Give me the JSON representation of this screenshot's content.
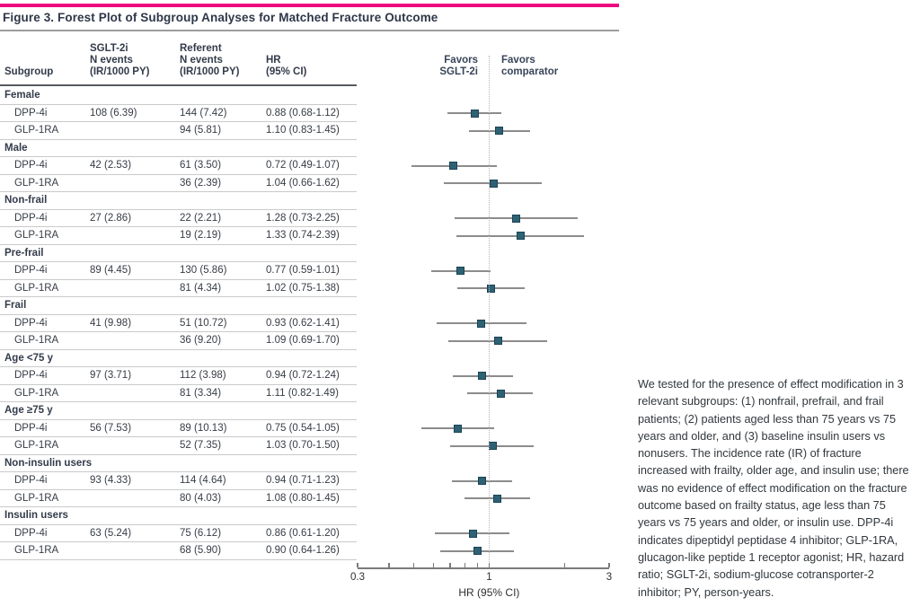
{
  "figure": {
    "title": "Figure 3. Forest Plot of Subgroup Analyses for Matched Fracture Outcome",
    "accent_color": "#ec0a7e",
    "marker_color": "#2e6174",
    "ci_color": "#8c8c8c"
  },
  "table": {
    "columns": {
      "subgroup": "Subgroup",
      "sglt2i": [
        "SGLT-2i",
        "N events",
        "(IR/1000 PY)"
      ],
      "referent": [
        "Referent",
        "N events",
        "(IR/1000 PY)"
      ],
      "hr": [
        "HR",
        "(95% CI)"
      ]
    }
  },
  "plot": {
    "favors_left": [
      "Favors",
      "SGLT-2i"
    ],
    "favors_right": [
      "Favors",
      "comparator"
    ]
  },
  "caption": "We tested for the presence of effect modification in 3 relevant subgroups: (1) nonfrail, prefrail, and frail patients; (2) patients aged less than 75 years vs 75 years and older, and (3) baseline insulin users vs nonusers. The incidence rate (IR) of fracture increased with frailty, older age, and insulin use; there was no evidence of effect modification on the fracture outcome based on frailty status, age less than 75 years vs 75 years and older, or insulin use. DPP-4i indicates dipeptidyl peptidase 4 inhibitor; GLP-1RA, glucagon-like peptide 1 receptor agonist; HR, hazard ratio; SGLT-2i, sodium-glucose cotransporter-2 inhibitor; PY, person-years.",
  "chart_data": {
    "type": "forest",
    "title": "Figure 3. Forest Plot of Subgroup Analyses for Matched Fracture Outcome",
    "x_axis": {
      "label": "HR (95% CI)",
      "scale": "log",
      "range": [
        0.3,
        3
      ],
      "labeled_ticks": [
        0.3,
        1,
        3
      ],
      "minor_ticks": [
        0.4,
        0.5,
        0.6,
        0.7,
        0.8,
        0.9,
        2
      ],
      "reference_line": 1
    },
    "groups": [
      {
        "label": "Female",
        "rows": [
          {
            "drug": "DPP-4i",
            "sglt2i_events": "108 (6.39)",
            "referent_events": "144 (7.42)",
            "hr_text": "0.88 (0.68-1.12)",
            "hr": 0.88,
            "ci": [
              0.68,
              1.12
            ]
          },
          {
            "drug": "GLP-1RA",
            "sglt2i_events": "",
            "referent_events": "94 (5.81)",
            "hr_text": "1.10 (0.83-1.45)",
            "hr": 1.1,
            "ci": [
              0.83,
              1.45
            ]
          }
        ]
      },
      {
        "label": "Male",
        "rows": [
          {
            "drug": "DPP-4i",
            "sglt2i_events": "42 (2.53)",
            "referent_events": "61 (3.50)",
            "hr_text": "0.72 (0.49-1.07)",
            "hr": 0.72,
            "ci": [
              0.49,
              1.07
            ]
          },
          {
            "drug": "GLP-1RA",
            "sglt2i_events": "",
            "referent_events": "36 (2.39)",
            "hr_text": "1.04 (0.66-1.62)",
            "hr": 1.04,
            "ci": [
              0.66,
              1.62
            ]
          }
        ]
      },
      {
        "label": "Non-frail",
        "rows": [
          {
            "drug": "DPP-4i",
            "sglt2i_events": "27 (2.86)",
            "referent_events": "22 (2.21)",
            "hr_text": "1.28 (0.73-2.25)",
            "hr": 1.28,
            "ci": [
              0.73,
              2.25
            ]
          },
          {
            "drug": "GLP-1RA",
            "sglt2i_events": "",
            "referent_events": "19 (2.19)",
            "hr_text": "1.33 (0.74-2.39)",
            "hr": 1.33,
            "ci": [
              0.74,
              2.39
            ]
          }
        ]
      },
      {
        "label": "Pre-frail",
        "rows": [
          {
            "drug": "DPP-4i",
            "sglt2i_events": "89 (4.45)",
            "referent_events": "130 (5.86)",
            "hr_text": "0.77 (0.59-1.01)",
            "hr": 0.77,
            "ci": [
              0.59,
              1.01
            ]
          },
          {
            "drug": "GLP-1RA",
            "sglt2i_events": "",
            "referent_events": "81 (4.34)",
            "hr_text": "1.02 (0.75-1.38)",
            "hr": 1.02,
            "ci": [
              0.75,
              1.38
            ]
          }
        ]
      },
      {
        "label": "Frail",
        "rows": [
          {
            "drug": "DPP-4i",
            "sglt2i_events": "41 (9.98)",
            "referent_events": "51 (10.72)",
            "hr_text": "0.93 (0.62-1.41)",
            "hr": 0.93,
            "ci": [
              0.62,
              1.41
            ]
          },
          {
            "drug": "GLP-1RA",
            "sglt2i_events": "",
            "referent_events": "36 (9.20)",
            "hr_text": "1.09 (0.69-1.70)",
            "hr": 1.09,
            "ci": [
              0.69,
              1.7
            ]
          }
        ]
      },
      {
        "label": "Age <75 y",
        "rows": [
          {
            "drug": "DPP-4i",
            "sglt2i_events": "97 (3.71)",
            "referent_events": "112 (3.98)",
            "hr_text": "0.94 (0.72-1.24)",
            "hr": 0.94,
            "ci": [
              0.72,
              1.24
            ]
          },
          {
            "drug": "GLP-1RA",
            "sglt2i_events": "",
            "referent_events": "81 (3.34)",
            "hr_text": "1.11 (0.82-1.49)",
            "hr": 1.11,
            "ci": [
              0.82,
              1.49
            ]
          }
        ]
      },
      {
        "label": "Age ≥75 y",
        "rows": [
          {
            "drug": "DPP-4i",
            "sglt2i_events": "56 (7.53)",
            "referent_events": "89 (10.13)",
            "hr_text": "0.75 (0.54-1.05)",
            "hr": 0.75,
            "ci": [
              0.54,
              1.05
            ]
          },
          {
            "drug": "GLP-1RA",
            "sglt2i_events": "",
            "referent_events": "52 (7.35)",
            "hr_text": "1.03 (0.70-1.50)",
            "hr": 1.03,
            "ci": [
              0.7,
              1.5
            ]
          }
        ]
      },
      {
        "label": "Non-insulin users",
        "rows": [
          {
            "drug": "DPP-4i",
            "sglt2i_events": "93 (4.33)",
            "referent_events": "114 (4.64)",
            "hr_text": "0.94 (0.71-1.23)",
            "hr": 0.94,
            "ci": [
              0.71,
              1.23
            ]
          },
          {
            "drug": "GLP-1RA",
            "sglt2i_events": "",
            "referent_events": "80 (4.03)",
            "hr_text": "1.08 (0.80-1.45)",
            "hr": 1.08,
            "ci": [
              0.8,
              1.45
            ]
          }
        ]
      },
      {
        "label": "Insulin users",
        "rows": [
          {
            "drug": "DPP-4i",
            "sglt2i_events": "63 (5.24)",
            "referent_events": "75 (6.12)",
            "hr_text": "0.86 (0.61-1.20)",
            "hr": 0.86,
            "ci": [
              0.61,
              1.2
            ]
          },
          {
            "drug": "GLP-1RA",
            "sglt2i_events": "",
            "referent_events": "68 (5.90)",
            "hr_text": "0.90 (0.64-1.26)",
            "hr": 0.9,
            "ci": [
              0.64,
              1.26
            ]
          }
        ]
      }
    ]
  }
}
